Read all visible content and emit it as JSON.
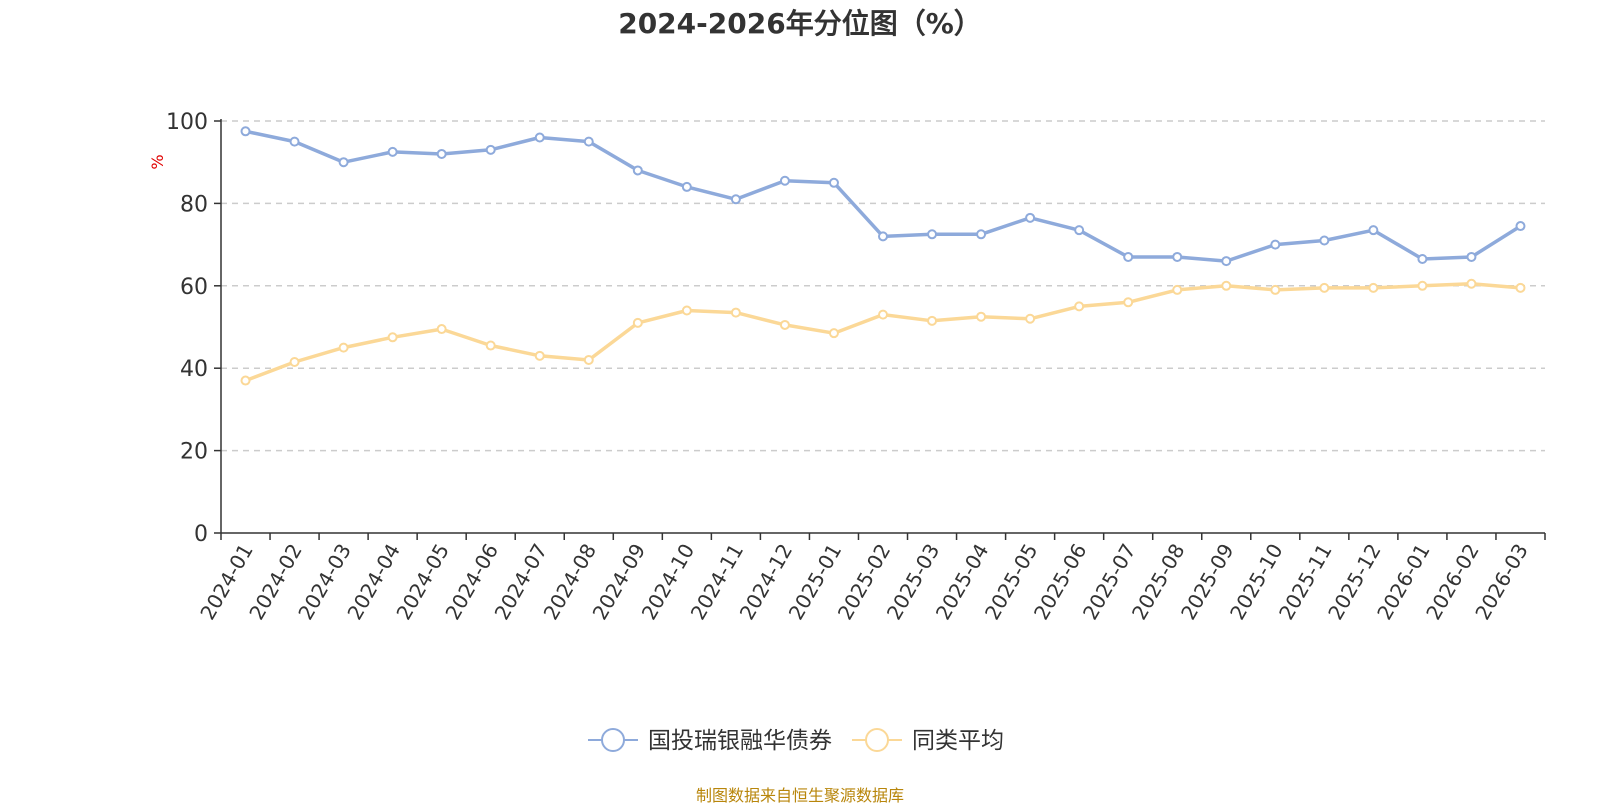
{
  "chart_data": {
    "type": "line",
    "title": "2024-2026年分位图（%）",
    "ylabel": "%",
    "xlabel": "",
    "ylim": [
      0,
      100
    ],
    "yticks": [
      0,
      20,
      40,
      60,
      80,
      100
    ],
    "grid": true,
    "legend_position": "bottom",
    "categories": [
      "2024-01",
      "2024-02",
      "2024-03",
      "2024-04",
      "2024-05",
      "2024-06",
      "2024-07",
      "2024-08",
      "2024-09",
      "2024-10",
      "2024-11",
      "2024-12",
      "2025-01",
      "2025-02",
      "2025-03",
      "2025-04",
      "2025-05",
      "2025-06",
      "2025-07",
      "2025-08",
      "2025-09",
      "2025-10",
      "2025-11",
      "2025-12",
      "2026-01",
      "2026-02",
      "2026-03"
    ],
    "series": [
      {
        "name": "国投瑞银融华债券",
        "color": "#8eaadb",
        "values": [
          97.5,
          95,
          90,
          92.5,
          92,
          93,
          96,
          95,
          88,
          84,
          81,
          85.5,
          85,
          72,
          72.5,
          72.5,
          76.5,
          73.5,
          67,
          67,
          66,
          70,
          71,
          73.5,
          66.5,
          67,
          74.5
        ]
      },
      {
        "name": "同类平均",
        "color": "#fbd897",
        "values": [
          37,
          41.5,
          45,
          47.5,
          49.5,
          45.5,
          43,
          42,
          51,
          54,
          53.5,
          50.5,
          48.5,
          53,
          51.5,
          52.5,
          52,
          55,
          56,
          59,
          60,
          59,
          59.5,
          59.5,
          60,
          60.5,
          59.5
        ]
      }
    ]
  },
  "footer": {
    "source": "制图数据来自恒生聚源数据库"
  }
}
